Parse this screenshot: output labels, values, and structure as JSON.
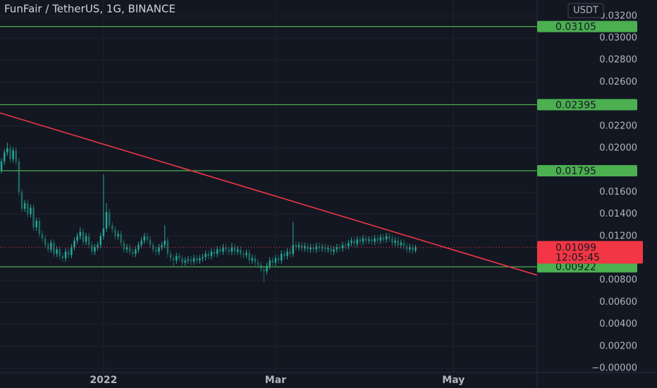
{
  "chart_data": {
    "type": "candlestick",
    "title": "FunFair / TetherUS, 1G, BINANCE",
    "currency": "USDT",
    "x": [
      -35,
      -34,
      -33,
      -32,
      -31,
      -30,
      -29,
      -28,
      -27,
      -26,
      -25,
      -24,
      -23,
      -22,
      -21,
      -20,
      -19,
      -18,
      -17,
      -16,
      -15,
      -14,
      -13,
      -12,
      -11,
      -10,
      -9,
      -8,
      -7,
      -6,
      -5,
      -4,
      -3,
      -2,
      -1,
      0,
      1,
      2,
      3,
      4,
      5,
      6,
      7,
      8,
      9,
      10,
      11,
      12,
      13,
      14,
      15,
      16,
      17,
      18,
      19,
      20,
      21,
      22,
      23,
      24,
      25,
      26,
      27,
      28,
      29,
      30,
      31,
      32,
      33,
      34,
      35,
      36,
      37,
      38,
      39,
      40,
      41,
      42,
      43,
      44,
      45,
      46,
      47,
      48,
      49,
      50,
      51,
      52,
      53,
      54,
      55,
      56,
      57,
      58,
      59,
      60,
      61,
      62,
      63,
      64,
      65,
      66,
      67,
      68,
      69,
      70,
      71,
      72,
      73,
      74,
      75,
      76,
      77,
      78,
      79,
      80,
      81,
      82,
      83,
      84,
      85,
      86,
      87,
      88,
      89,
      90,
      91,
      92,
      93,
      94,
      95,
      96,
      97,
      98,
      99,
      100,
      101,
      102,
      103,
      104,
      105,
      106,
      107
    ],
    "open": [
      0.018,
      0.0188,
      0.0196,
      0.02,
      0.019,
      0.0198,
      0.0188,
      0.016,
      0.0145,
      0.015,
      0.014,
      0.0146,
      0.0128,
      0.0134,
      0.0122,
      0.0118,
      0.0112,
      0.0108,
      0.0114,
      0.0104,
      0.0108,
      0.0102,
      0.01,
      0.0106,
      0.0103,
      0.011,
      0.0116,
      0.012,
      0.0124,
      0.0115,
      0.012,
      0.0112,
      0.0106,
      0.011,
      0.0112,
      0.012,
      0.0127,
      0.0142,
      0.013,
      0.0126,
      0.012,
      0.0122,
      0.0114,
      0.0108,
      0.011,
      0.0106,
      0.0104,
      0.0108,
      0.0112,
      0.0116,
      0.012,
      0.0117,
      0.0112,
      0.0108,
      0.0106,
      0.011,
      0.0112,
      0.0116,
      0.0104,
      0.01,
      0.0098,
      0.0102,
      0.01,
      0.0096,
      0.0098,
      0.0099,
      0.0097,
      0.01,
      0.0098,
      0.01,
      0.0101,
      0.0104,
      0.0102,
      0.0106,
      0.0104,
      0.0108,
      0.0106,
      0.011,
      0.0108,
      0.0106,
      0.011,
      0.0106,
      0.0108,
      0.0104,
      0.0103,
      0.0105,
      0.0098,
      0.01,
      0.0096,
      0.0094,
      0.009,
      0.0088,
      0.0093,
      0.0098,
      0.0096,
      0.01,
      0.0098,
      0.0104,
      0.0102,
      0.0106,
      0.0104,
      0.0112,
      0.011,
      0.0112,
      0.0109,
      0.0111,
      0.0108,
      0.011,
      0.0108,
      0.0111,
      0.0109,
      0.011,
      0.0108,
      0.0109,
      0.0106,
      0.0108,
      0.011,
      0.0109,
      0.0112,
      0.0111,
      0.0114,
      0.0116,
      0.0113,
      0.0117,
      0.0115,
      0.0118,
      0.0116,
      0.0117,
      0.0115,
      0.0118,
      0.0116,
      0.0119,
      0.0117,
      0.012,
      0.0118,
      0.0114,
      0.0116,
      0.0112,
      0.0114,
      0.0111,
      0.0108,
      0.011,
      0.0107
    ],
    "high": [
      0.0191,
      0.0199,
      0.0205,
      0.0203,
      0.0201,
      0.0201,
      0.0191,
      0.0163,
      0.0153,
      0.0153,
      0.0149,
      0.0149,
      0.0137,
      0.0137,
      0.0125,
      0.0121,
      0.0115,
      0.0117,
      0.0117,
      0.0111,
      0.0111,
      0.0105,
      0.0109,
      0.0109,
      0.0113,
      0.0119,
      0.0123,
      0.0128,
      0.0127,
      0.0123,
      0.0123,
      0.0115,
      0.0113,
      0.0115,
      0.0123,
      0.0176,
      0.015,
      0.0145,
      0.0133,
      0.0129,
      0.0125,
      0.0125,
      0.0117,
      0.0113,
      0.0113,
      0.0109,
      0.0111,
      0.0115,
      0.0119,
      0.0123,
      0.0123,
      0.012,
      0.0115,
      0.0111,
      0.0113,
      0.0115,
      0.013,
      0.0119,
      0.0107,
      0.0103,
      0.0105,
      0.0105,
      0.0103,
      0.0101,
      0.0102,
      0.0102,
      0.0103,
      0.0103,
      0.0103,
      0.0104,
      0.0107,
      0.0107,
      0.0109,
      0.0109,
      0.0111,
      0.0111,
      0.0113,
      0.0113,
      0.0111,
      0.0114,
      0.0113,
      0.0111,
      0.0111,
      0.0107,
      0.0108,
      0.0108,
      0.0103,
      0.0103,
      0.0099,
      0.0097,
      0.0093,
      0.0096,
      0.0101,
      0.0101,
      0.0103,
      0.0103,
      0.0107,
      0.0107,
      0.0109,
      0.0109,
      0.0133,
      0.0115,
      0.0115,
      0.0115,
      0.0114,
      0.0114,
      0.0113,
      0.0113,
      0.0114,
      0.0114,
      0.0113,
      0.0113,
      0.0112,
      0.0112,
      0.0111,
      0.0113,
      0.0113,
      0.0115,
      0.0115,
      0.0117,
      0.0119,
      0.0119,
      0.012,
      0.012,
      0.0121,
      0.0121,
      0.012,
      0.012,
      0.0121,
      0.0121,
      0.0122,
      0.0122,
      0.0123,
      0.0123,
      0.0121,
      0.0119,
      0.0119,
      0.0117,
      0.0117,
      0.0114,
      0.0113,
      0.0113,
      0.0112
    ],
    "low": [
      0.0177,
      0.0185,
      0.0193,
      0.0187,
      0.0187,
      0.0185,
      0.0157,
      0.0142,
      0.0142,
      0.0137,
      0.0137,
      0.0125,
      0.0125,
      0.0119,
      0.0115,
      0.0109,
      0.0105,
      0.0105,
      0.0101,
      0.0101,
      0.0099,
      0.0097,
      0.0097,
      0.01,
      0.01,
      0.0107,
      0.0113,
      0.0117,
      0.0112,
      0.0112,
      0.0109,
      0.0103,
      0.0103,
      0.0107,
      0.0109,
      0.0117,
      0.0124,
      0.0127,
      0.0123,
      0.0117,
      0.0117,
      0.0111,
      0.0105,
      0.0105,
      0.0103,
      0.0101,
      0.0101,
      0.0105,
      0.0109,
      0.0113,
      0.0114,
      0.0109,
      0.0105,
      0.0103,
      0.0103,
      0.0107,
      0.0109,
      0.0101,
      0.0097,
      0.0092,
      0.0095,
      0.0097,
      0.0093,
      0.0093,
      0.0095,
      0.0094,
      0.0094,
      0.0095,
      0.0095,
      0.0097,
      0.0098,
      0.0099,
      0.0099,
      0.0101,
      0.0101,
      0.0103,
      0.0103,
      0.0105,
      0.0103,
      0.0103,
      0.0103,
      0.0103,
      0.0101,
      0.01,
      0.01,
      0.0095,
      0.0095,
      0.0093,
      0.0091,
      0.0087,
      0.0078,
      0.0085,
      0.009,
      0.0093,
      0.0093,
      0.0095,
      0.0095,
      0.0099,
      0.0099,
      0.0101,
      0.0101,
      0.0107,
      0.0107,
      0.0106,
      0.0106,
      0.0105,
      0.0105,
      0.0105,
      0.0105,
      0.0106,
      0.0106,
      0.0105,
      0.0105,
      0.0103,
      0.0103,
      0.0105,
      0.0106,
      0.0106,
      0.0108,
      0.0108,
      0.0111,
      0.011,
      0.011,
      0.0112,
      0.0112,
      0.0113,
      0.0113,
      0.0112,
      0.0112,
      0.0113,
      0.0113,
      0.0114,
      0.0114,
      0.0115,
      0.0111,
      0.0111,
      0.0109,
      0.0109,
      0.0108,
      0.0105,
      0.0105,
      0.0104,
      0.0105
    ],
    "close": [
      0.0188,
      0.0196,
      0.02,
      0.019,
      0.0198,
      0.0188,
      0.016,
      0.0145,
      0.015,
      0.014,
      0.0146,
      0.0128,
      0.0134,
      0.0122,
      0.0118,
      0.0112,
      0.0108,
      0.0114,
      0.0104,
      0.0108,
      0.0102,
      0.01,
      0.0106,
      0.0103,
      0.011,
      0.0116,
      0.012,
      0.0124,
      0.0115,
      0.012,
      0.0112,
      0.0106,
      0.011,
      0.0112,
      0.012,
      0.0127,
      0.0142,
      0.013,
      0.0126,
      0.012,
      0.0122,
      0.0114,
      0.0108,
      0.011,
      0.0106,
      0.0104,
      0.0108,
      0.0112,
      0.0116,
      0.012,
      0.0117,
      0.0112,
      0.0108,
      0.0106,
      0.011,
      0.0112,
      0.0116,
      0.0104,
      0.01,
      0.0098,
      0.0102,
      0.01,
      0.0096,
      0.0098,
      0.0099,
      0.0097,
      0.01,
      0.0098,
      0.01,
      0.0101,
      0.0104,
      0.0102,
      0.0106,
      0.0104,
      0.0108,
      0.0106,
      0.011,
      0.0108,
      0.0106,
      0.011,
      0.0106,
      0.0108,
      0.0104,
      0.0103,
      0.0105,
      0.0098,
      0.01,
      0.0096,
      0.0094,
      0.009,
      0.0088,
      0.0093,
      0.0098,
      0.0096,
      0.01,
      0.0098,
      0.0104,
      0.0102,
      0.0106,
      0.0104,
      0.0112,
      0.011,
      0.0112,
      0.0109,
      0.0111,
      0.0108,
      0.011,
      0.0108,
      0.0111,
      0.0109,
      0.011,
      0.0108,
      0.0109,
      0.0106,
      0.0108,
      0.011,
      0.0109,
      0.0112,
      0.0111,
      0.0114,
      0.0116,
      0.0113,
      0.0117,
      0.0115,
      0.0118,
      0.0116,
      0.0117,
      0.0115,
      0.0118,
      0.0116,
      0.0119,
      0.0117,
      0.012,
      0.0118,
      0.0114,
      0.0116,
      0.0112,
      0.0114,
      0.0111,
      0.0108,
      0.011,
      0.0107,
      0.01099
    ],
    "up_color": "#26a69a",
    "down_color": "#1b6b63",
    "xlim": [
      -35.5,
      148.7
    ],
    "xticks": [
      {
        "value": 0,
        "label": "2022"
      },
      {
        "value": 59,
        "label": "Mar"
      },
      {
        "value": 120,
        "label": "May"
      }
    ],
    "ylim": [
      -0.00038,
      0.03346
    ],
    "yticks": [
      {
        "value": 0,
        "label": "−0.00000"
      },
      {
        "value": 0.002,
        "label": "0.00200"
      },
      {
        "value": 0.004,
        "label": "0.00400"
      },
      {
        "value": 0.006,
        "label": "0.00600"
      },
      {
        "value": 0.008,
        "label": "0.00800"
      },
      {
        "value": 0.012,
        "label": "0.01200"
      },
      {
        "value": 0.014,
        "label": "0.01400"
      },
      {
        "value": 0.016,
        "label": "0.01600"
      },
      {
        "value": 0.02,
        "label": "0.02000"
      },
      {
        "value": 0.022,
        "label": "0.02200"
      },
      {
        "value": 0.026,
        "label": "0.02600"
      },
      {
        "value": 0.028,
        "label": "0.02800"
      },
      {
        "value": 0.03,
        "label": "0.03000"
      },
      {
        "value": 0.032,
        "label": "0.03200"
      }
    ],
    "grid": true,
    "levels": [
      0.03105,
      0.02395,
      0.01795,
      0.00922
    ],
    "level_color": "#4caf50",
    "trendline": {
      "x": [
        -35.5,
        148.7
      ],
      "values": [
        0.0232,
        0.00846
      ],
      "color": "#f23645"
    },
    "last_price": 0.01099,
    "countdown": "12:05:45",
    "last_color": "#f23645"
  }
}
